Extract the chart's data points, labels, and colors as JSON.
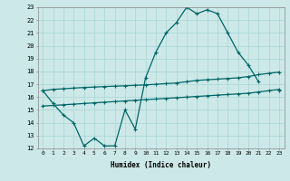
{
  "title": "",
  "xlabel": "Humidex (Indice chaleur)",
  "x": [
    0,
    1,
    2,
    3,
    4,
    5,
    6,
    7,
    8,
    9,
    10,
    11,
    12,
    13,
    14,
    15,
    16,
    17,
    18,
    19,
    20,
    21,
    22,
    23
  ],
  "line1": [
    16.5,
    15.5,
    14.6,
    14.0,
    12.2,
    12.8,
    12.2,
    12.2,
    15.0,
    13.5,
    17.5,
    19.5,
    21.0,
    21.8,
    23.0,
    22.5,
    22.8,
    22.5,
    21.0,
    19.5,
    18.5,
    17.2,
    null,
    16.5
  ],
  "line2": [
    16.5,
    16.6,
    16.65,
    16.7,
    16.75,
    16.78,
    16.82,
    16.85,
    16.88,
    16.92,
    16.95,
    17.0,
    17.05,
    17.1,
    17.2,
    17.3,
    17.35,
    17.4,
    17.45,
    17.5,
    17.6,
    17.75,
    17.85,
    17.95
  ],
  "line3": [
    15.3,
    15.35,
    15.4,
    15.45,
    15.5,
    15.55,
    15.6,
    15.65,
    15.7,
    15.75,
    15.8,
    15.85,
    15.9,
    15.95,
    16.0,
    16.05,
    16.1,
    16.15,
    16.2,
    16.25,
    16.3,
    16.4,
    16.5,
    16.6
  ],
  "bg_color": "#cce8e8",
  "line_color": "#006666",
  "grid_color": "#aad4d4",
  "ylim": [
    12,
    23
  ],
  "xlim": [
    -0.5,
    23.5
  ],
  "yticks": [
    12,
    13,
    14,
    15,
    16,
    17,
    18,
    19,
    20,
    21,
    22,
    23
  ],
  "xticks": [
    0,
    1,
    2,
    3,
    4,
    5,
    6,
    7,
    8,
    9,
    10,
    11,
    12,
    13,
    14,
    15,
    16,
    17,
    18,
    19,
    20,
    21,
    22,
    23
  ]
}
